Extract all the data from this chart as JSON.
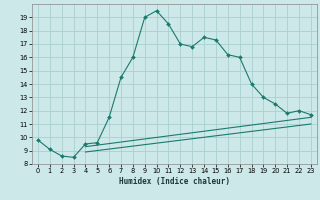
{
  "title": "",
  "xlabel": "Humidex (Indice chaleur)",
  "bg_color": "#cce8e8",
  "grid_color": "#aad0d0",
  "line_color": "#1a7a6e",
  "xlim": [
    -0.5,
    23.5
  ],
  "ylim": [
    8,
    20
  ],
  "xticks": [
    0,
    1,
    2,
    3,
    4,
    5,
    6,
    7,
    8,
    9,
    10,
    11,
    12,
    13,
    14,
    15,
    16,
    17,
    18,
    19,
    20,
    21,
    22,
    23
  ],
  "yticks": [
    8,
    9,
    10,
    11,
    12,
    13,
    14,
    15,
    16,
    17,
    18,
    19
  ],
  "main_line": {
    "x": [
      0,
      1,
      2,
      3,
      4,
      5,
      6,
      7,
      8,
      9,
      10,
      11,
      12,
      13,
      14,
      15,
      16,
      17,
      18,
      19,
      20,
      21,
      22,
      23
    ],
    "y": [
      9.8,
      9.1,
      8.6,
      8.5,
      9.5,
      9.6,
      11.5,
      14.5,
      16.0,
      19.0,
      19.5,
      18.5,
      17.0,
      16.8,
      17.5,
      17.3,
      16.2,
      16.0,
      14.0,
      13.0,
      12.5,
      11.8,
      12.0,
      11.7
    ]
  },
  "lower_line1": {
    "x": [
      4,
      23
    ],
    "y": [
      9.3,
      11.5
    ]
  },
  "lower_line2": {
    "x": [
      4,
      23
    ],
    "y": [
      8.9,
      11.0
    ]
  },
  "xlabel_fontsize": 5.5,
  "tick_fontsize": 4.8,
  "marker_size": 2.0,
  "line_width": 0.8
}
